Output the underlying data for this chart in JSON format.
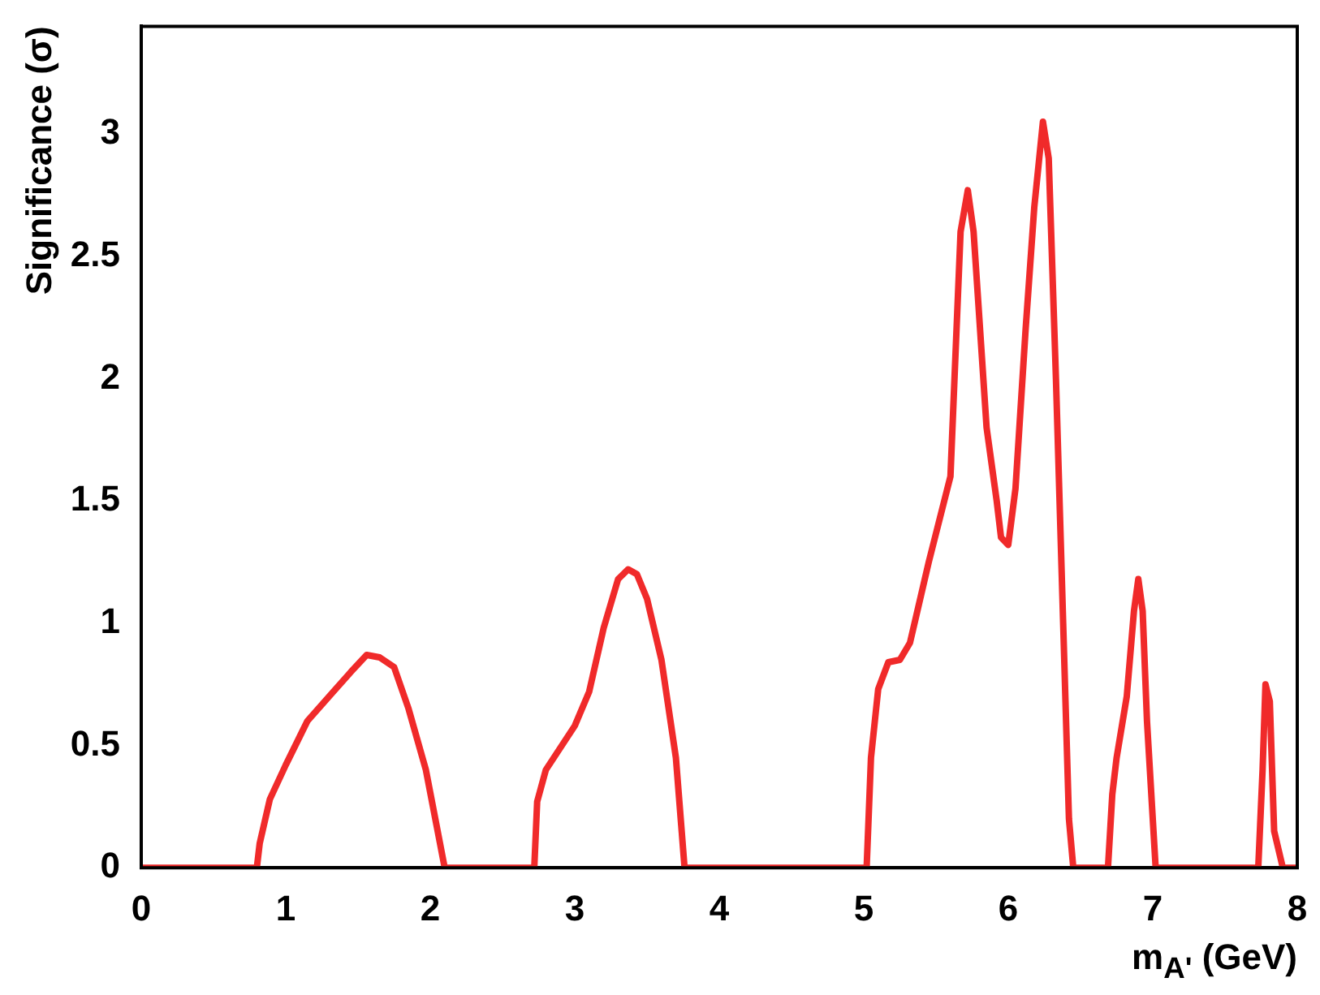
{
  "chart_data": {
    "type": "line",
    "xlabel": "m$_{A'}$ (GeV)",
    "ylabel": "Significance (σ)",
    "xlim": [
      0,
      8
    ],
    "xticks": [
      0,
      1,
      2,
      3,
      4,
      5,
      6,
      7,
      8
    ],
    "ylim": [
      0,
      3.44
    ],
    "yticks": [
      0,
      0.5,
      1,
      1.5,
      2,
      2.5,
      3
    ],
    "grid": false,
    "legend": false,
    "marker": "none",
    "line_style": "solid",
    "series": [
      {
        "color": "#f02a2a",
        "x": [
          0,
          0.8,
          0.82,
          0.89,
          1.0,
          1.15,
          1.33,
          1.45,
          1.56,
          1.65,
          1.75,
          1.85,
          1.97,
          2.1,
          2.72,
          2.74,
          2.8,
          3.0,
          3.1,
          3.2,
          3.3,
          3.37,
          3.43,
          3.5,
          3.6,
          3.7,
          3.76,
          5.02,
          5.05,
          5.1,
          5.17,
          5.25,
          5.32,
          5.45,
          5.6,
          5.67,
          5.72,
          5.76,
          5.85,
          5.92,
          5.95,
          6.0,
          6.05,
          6.12,
          6.18,
          6.24,
          6.28,
          6.33,
          6.38,
          6.42,
          6.45,
          6.69,
          6.72,
          6.75,
          6.82,
          6.87,
          6.9,
          6.93,
          6.96,
          7.02,
          7.73,
          7.76,
          7.78,
          7.81,
          7.84,
          7.9,
          8
        ],
        "values": [
          0,
          0,
          0.1,
          0.28,
          0.42,
          0.6,
          0.72,
          0.8,
          0.87,
          0.86,
          0.82,
          0.65,
          0.4,
          0,
          0,
          0.27,
          0.4,
          0.58,
          0.72,
          0.98,
          1.18,
          1.22,
          1.2,
          1.1,
          0.85,
          0.45,
          0,
          0,
          0.45,
          0.73,
          0.84,
          0.85,
          0.92,
          1.25,
          1.6,
          2.6,
          2.77,
          2.6,
          1.8,
          1.5,
          1.35,
          1.32,
          1.55,
          2.2,
          2.7,
          3.05,
          2.9,
          2.0,
          1.0,
          0.2,
          0,
          0,
          0.3,
          0.45,
          0.7,
          1.05,
          1.18,
          1.05,
          0.6,
          0,
          0,
          0.4,
          0.75,
          0.68,
          0.15,
          0,
          0
        ]
      }
    ]
  }
}
